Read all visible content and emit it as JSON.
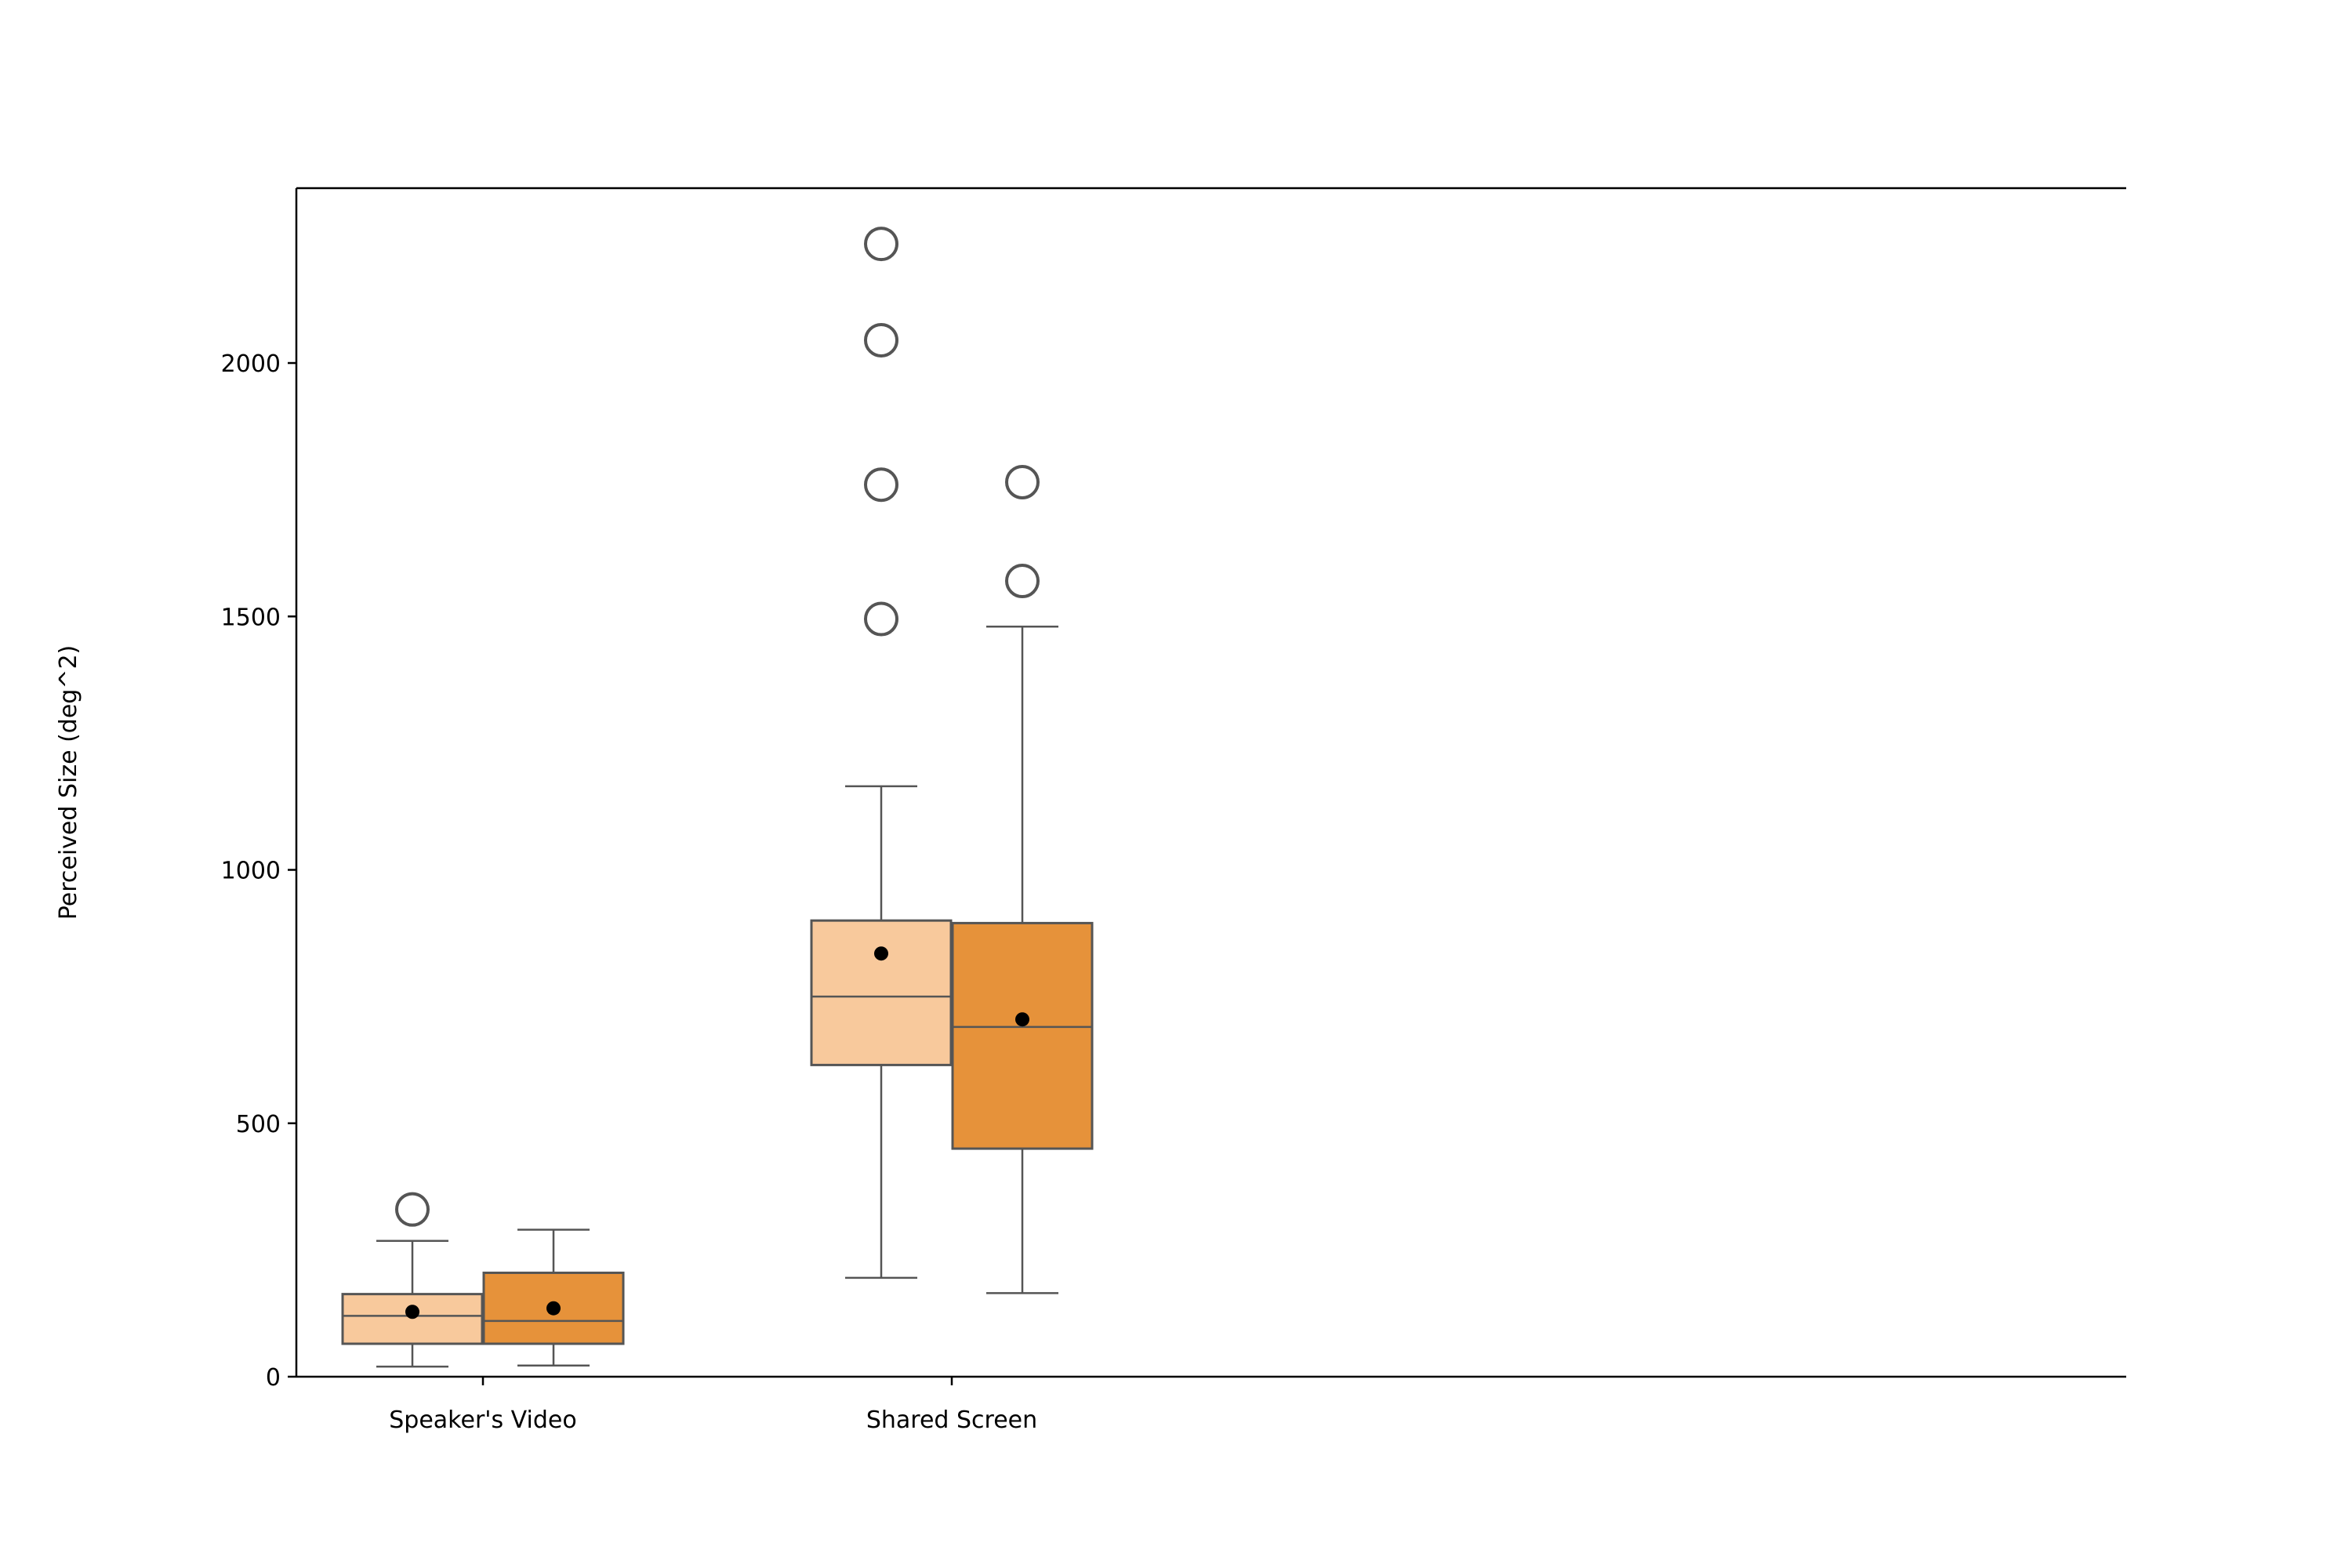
{
  "chart_data": {
    "type": "box",
    "title": "",
    "xlabel": "",
    "ylabel": "Perceived Size (deg^2)",
    "ylim": [
      0,
      2345
    ],
    "yticks": [
      0,
      500,
      1000,
      1500,
      2000
    ],
    "categories": [
      "Speaker's Video",
      "Shared Screen"
    ],
    "grid": false,
    "legend": "none",
    "series_colors": [
      "#f8c99c",
      "#e6923a"
    ],
    "boxes": [
      {
        "category": "Speaker's Video",
        "group": 0,
        "whisker_low": 20,
        "q1": 65,
        "median": 120,
        "q3": 163,
        "whisker_high": 268,
        "mean": 128,
        "outliers": [
          330
        ]
      },
      {
        "category": "Speaker's Video",
        "group": 1,
        "whisker_low": 22,
        "q1": 65,
        "median": 110,
        "q3": 205,
        "whisker_high": 290,
        "mean": 135,
        "outliers": []
      },
      {
        "category": "Shared Screen",
        "group": 0,
        "whisker_low": 195,
        "q1": 615,
        "median": 750,
        "q3": 900,
        "whisker_high": 1165,
        "mean": 835,
        "outliers": [
          1495,
          1760,
          2045,
          2235
        ]
      },
      {
        "category": "Shared Screen",
        "group": 1,
        "whisker_low": 165,
        "q1": 450,
        "median": 690,
        "q3": 895,
        "whisker_high": 1480,
        "mean": 705,
        "outliers": [
          1570,
          1765
        ]
      }
    ]
  }
}
